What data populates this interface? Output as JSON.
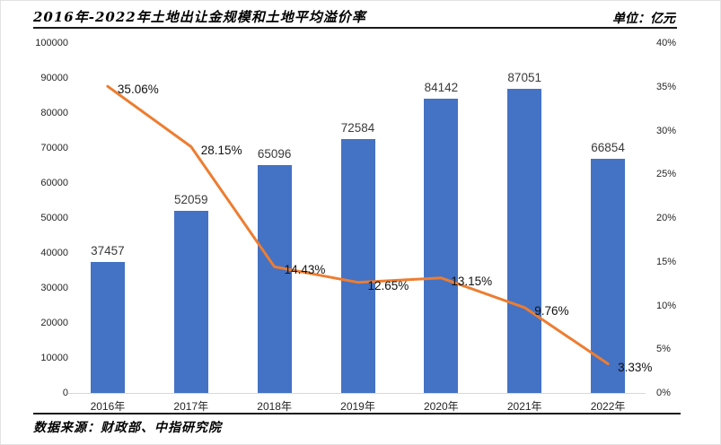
{
  "header": {
    "title": "2016年-2022年土地出让金规模和土地平均溢价率",
    "unit_label": "单位：亿元"
  },
  "footer": {
    "source": "数据来源：财政部、中指研究院"
  },
  "colors": {
    "bar": "#4472C4",
    "line": "#ED7D31",
    "axis_line": "#d9d9d9"
  },
  "chart_data": {
    "type": "bar",
    "subtype": "combo-bar-line",
    "title": "2016年-2022年土地出让金规模和土地平均溢价率",
    "categories": [
      "2016年",
      "2017年",
      "2018年",
      "2019年",
      "2020年",
      "2021年",
      "2022年"
    ],
    "series": [
      {
        "name": "土地出让金规模",
        "type": "bar",
        "axis": "left",
        "color": "#4472C4",
        "values": [
          37457,
          52059,
          65096,
          72584,
          84142,
          87051,
          66854
        ],
        "data_labels": [
          "37457",
          "52059",
          "65096",
          "72584",
          "84142",
          "87051",
          "66854"
        ]
      },
      {
        "name": "土地平均溢价率",
        "type": "line",
        "axis": "right",
        "color": "#ED7D31",
        "values": [
          35.06,
          28.15,
          14.43,
          12.65,
          13.15,
          9.76,
          3.33
        ],
        "data_labels": [
          "35.06%",
          "28.15%",
          "14.43%",
          "12.65%",
          "13.15%",
          "9.76%",
          "3.33%"
        ]
      }
    ],
    "left_axis": {
      "min": 0,
      "max": 100000,
      "step": 10000,
      "ticks": [
        "0",
        "10000",
        "20000",
        "30000",
        "40000",
        "50000",
        "60000",
        "70000",
        "80000",
        "90000",
        "100000"
      ]
    },
    "right_axis": {
      "min": 0,
      "max": 40,
      "step": 5,
      "ticks": [
        "0%",
        "5%",
        "10%",
        "15%",
        "20%",
        "25%",
        "30%",
        "35%",
        "40%"
      ]
    },
    "grid": false,
    "legend": "none"
  }
}
